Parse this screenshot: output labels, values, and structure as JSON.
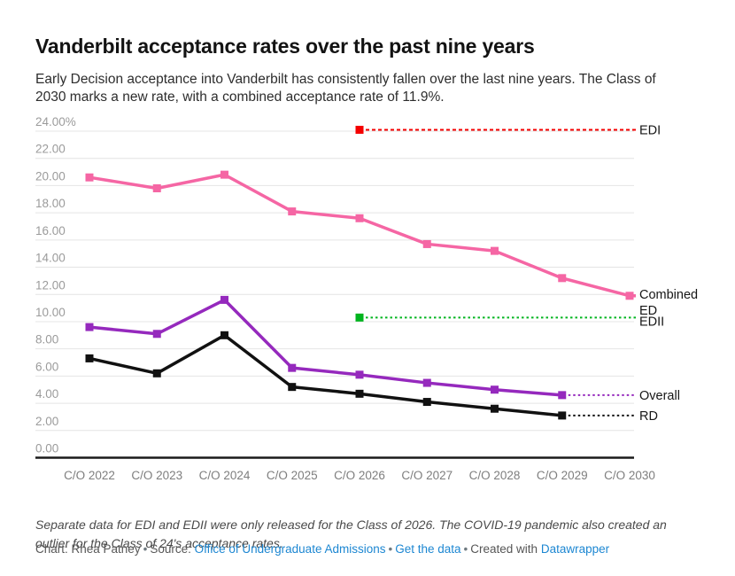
{
  "header": {
    "title": "Vanderbilt acceptance rates over the past nine years",
    "subtitle": "Early Decision acceptance into Vanderbilt has consistently fallen over the last nine years. The Class of 2030 marks a new rate, with a combined acceptance rate of 11.9%."
  },
  "notes": "Separate data for EDI and EDII were only released for the Class of 2026. The COVID-19 pandemic also created an outlier for the Class of 24's acceptance rates.",
  "footer": {
    "chart_credit": "Chart: Rhea Patney",
    "separator": "•",
    "source_label": "Source:",
    "source_link": "Office of Undergraduate Admissions",
    "data_link": "Get the data",
    "created_with": "Created with",
    "creator_link": "Datawrapper"
  },
  "colors": {
    "link_blue": "#1d87d2",
    "combined_ed_pink": "#f566a4",
    "overall_purple": "#9529bd",
    "rd_black": "#111111",
    "edi_red": "#f40000",
    "edii_green": "#00b41e",
    "gridline": "#e4e4e4",
    "baseline": "#1a1a1a"
  },
  "chart_data": {
    "type": "line",
    "title": "Vanderbilt acceptance rates over the past nine years",
    "xlabel": "",
    "ylabel": "",
    "ylim": [
      0,
      24
    ],
    "grid": true,
    "legend_position": "right-inline",
    "y_tick_labels": [
      "24.00%",
      "22.00",
      "20.00",
      "18.00",
      "16.00",
      "14.00",
      "12.00",
      "10.00",
      "8.00",
      "6.00",
      "4.00",
      "2.00",
      "0.00"
    ],
    "categories": [
      "C/O 2022",
      "C/O 2023",
      "C/O 2024",
      "C/O 2025",
      "C/O 2026",
      "C/O 2027",
      "C/O 2028",
      "C/O 2029",
      "C/O 2030"
    ],
    "series": [
      {
        "name": "Combined ED",
        "label_lines": [
          "Combined",
          "ED"
        ],
        "color": "#f566a4",
        "values": [
          20.6,
          19.8,
          20.8,
          18.1,
          17.6,
          15.7,
          15.2,
          13.2,
          11.9
        ],
        "ext": "solid"
      },
      {
        "name": "Overall",
        "label_lines": [
          "Overall"
        ],
        "color": "#9529bd",
        "values": [
          9.6,
          9.1,
          11.6,
          6.6,
          6.1,
          5.5,
          5.0,
          4.6,
          null
        ],
        "ext": "dotted"
      },
      {
        "name": "RD",
        "label_lines": [
          "RD"
        ],
        "color": "#111111",
        "values": [
          7.3,
          6.2,
          9.0,
          5.2,
          4.7,
          4.1,
          3.6,
          3.1,
          null
        ],
        "ext": "dotted"
      },
      {
        "name": "EDI",
        "label_lines": [
          "EDI"
        ],
        "color": "#f40000",
        "values": [
          null,
          null,
          null,
          null,
          24.1,
          null,
          null,
          null,
          null
        ],
        "ext": "dotted"
      },
      {
        "name": "EDII",
        "label_lines": [
          "EDII"
        ],
        "color": "#00b41e",
        "values": [
          null,
          null,
          null,
          null,
          10.3,
          null,
          null,
          null,
          null
        ],
        "ext": "dotted"
      }
    ]
  }
}
